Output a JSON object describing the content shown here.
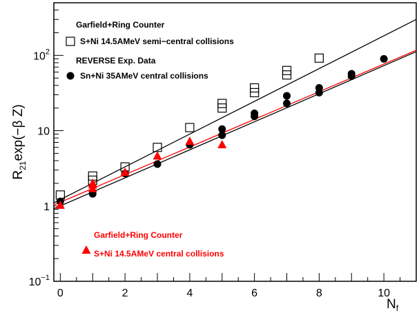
{
  "chart_data": {
    "type": "scatter",
    "xlabel": "N",
    "xlabel_sub": "f",
    "ylabel": "R",
    "ylabel_sub": "21",
    "ylabel_rest": "exp(−β Z)",
    "x_range": [
      -0.2,
      11
    ],
    "y_range": [
      0.1,
      500
    ],
    "y_scale": "log",
    "x_ticks": [
      0,
      2,
      4,
      6,
      8,
      10
    ],
    "y_ticks": [
      {
        "value": 0.1,
        "base": "10",
        "exp": "−1"
      },
      {
        "value": 1,
        "label": "1"
      },
      {
        "value": 10,
        "label": "10"
      },
      {
        "value": 100,
        "base": "10",
        "exp": "2"
      }
    ],
    "legend": [
      {
        "title": "Garfield+Ring Counter",
        "label": "S+Ni 14.5AMeV semi−central collisions",
        "marker": "open-square",
        "color": "#000000"
      },
      {
        "title": "REVERSE Exp. Data",
        "label": "Sn+Ni 35AMeV central collisions",
        "marker": "filled-circle",
        "color": "#000000"
      },
      {
        "title": "Garfield+Ring Counter",
        "label": "S+Ni 14.5AMeV central collisions",
        "marker": "filled-triangle",
        "color": "#ff0000"
      }
    ],
    "series": [
      {
        "marker": "open-square",
        "color": "#000000",
        "points": [
          [
            0,
            1.4
          ],
          [
            1,
            2.2
          ],
          [
            1,
            2.5
          ],
          [
            2,
            3.3
          ],
          [
            3,
            6.0
          ],
          [
            4,
            11
          ],
          [
            5,
            20
          ],
          [
            5,
            23
          ],
          [
            6,
            32
          ],
          [
            6,
            37
          ],
          [
            7,
            55
          ],
          [
            7,
            63
          ],
          [
            8,
            92
          ]
        ]
      },
      {
        "marker": "filled-circle",
        "color": "#000000",
        "points": [
          [
            0,
            1.15
          ],
          [
            1,
            1.45
          ],
          [
            2,
            2.7
          ],
          [
            3,
            3.6
          ],
          [
            4,
            6.5
          ],
          [
            5,
            8.7
          ],
          [
            5,
            10.5
          ],
          [
            6,
            15.5
          ],
          [
            6,
            17
          ],
          [
            7,
            23
          ],
          [
            7,
            29
          ],
          [
            8,
            32
          ],
          [
            8,
            37
          ],
          [
            9,
            53
          ],
          [
            9,
            57
          ],
          [
            10,
            90
          ]
        ]
      },
      {
        "marker": "filled-triangle",
        "color": "#ff0000",
        "points": [
          [
            0,
            1.02
          ],
          [
            1,
            1.7
          ],
          [
            1,
            1.9
          ],
          [
            1,
            2.0
          ],
          [
            2,
            2.8
          ],
          [
            3,
            4.6
          ],
          [
            4,
            7.2
          ],
          [
            5,
            6.5
          ]
        ]
      }
    ],
    "fit_lines": [
      {
        "color": "#000000",
        "points": [
          [
            -0.2,
            1.1
          ],
          [
            11,
            300
          ]
        ]
      },
      {
        "color": "#000000",
        "points": [
          [
            -0.2,
            0.92
          ],
          [
            11,
            112
          ]
        ]
      },
      {
        "color": "#ff0000",
        "points": [
          [
            -0.2,
            1.03
          ],
          [
            11,
            117
          ]
        ]
      }
    ]
  }
}
